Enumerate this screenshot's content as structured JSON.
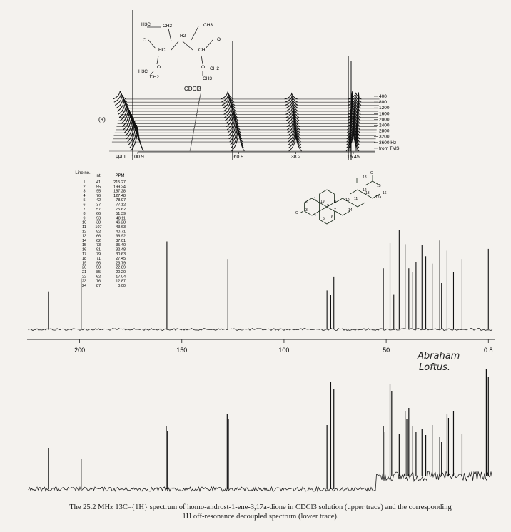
{
  "panel_a": {
    "label": "(a)",
    "solvent_label": "CDCl3",
    "axis_unit": "ppm",
    "axis_ticks": [
      "100.9",
      "60.9",
      "38.2",
      "15.45"
    ],
    "offsets": [
      "400",
      "800",
      "1200",
      "1600",
      "2000",
      "2400",
      "2800",
      "3200",
      "3600 Hz",
      "from TMS"
    ],
    "molecule_labels": [
      "H3C",
      "CH2",
      "CH3",
      "H2",
      "O",
      "O",
      "HC",
      "CH",
      "O",
      "O",
      "CH2",
      "CH3",
      "H3C",
      "CH2"
    ]
  },
  "table": {
    "headers": [
      "Line no.",
      "Int.",
      "PPM"
    ],
    "rows": [
      [
        "1",
        "41",
        "215.27"
      ],
      [
        "2",
        "55",
        "199.24"
      ],
      [
        "3",
        "95",
        "157.28"
      ],
      [
        "4",
        "76",
        "127.48"
      ],
      [
        "5",
        "42",
        "78.97"
      ],
      [
        "6",
        "37",
        "77.12"
      ],
      [
        "7",
        "57",
        "75.62"
      ],
      [
        "8",
        "66",
        "51.39"
      ],
      [
        "9",
        "93",
        "48.11"
      ],
      [
        "10",
        "38",
        "46.28"
      ],
      [
        "11",
        "107",
        "43.63"
      ],
      [
        "12",
        "92",
        "40.71"
      ],
      [
        "13",
        "66",
        "38.92"
      ],
      [
        "14",
        "62",
        "37.01"
      ],
      [
        "15",
        "73",
        "35.40"
      ],
      [
        "16",
        "91",
        "32.48"
      ],
      [
        "17",
        "79",
        "30.63"
      ],
      [
        "18",
        "71",
        "27.45"
      ],
      [
        "19",
        "96",
        "23.79"
      ],
      [
        "20",
        "50",
        "22.89"
      ],
      [
        "21",
        "85",
        "20.20"
      ],
      [
        "22",
        "62",
        "17.04"
      ],
      [
        "23",
        "76",
        "12.87"
      ],
      [
        "24",
        "87",
        "0.00"
      ]
    ]
  },
  "structure_labels": [
    "18",
    "O",
    "O",
    "19",
    "1",
    "2",
    "3",
    "4",
    "5",
    "6",
    "7",
    "8",
    "9",
    "10",
    "11",
    "12",
    "13",
    "14",
    "15",
    "16",
    "17a"
  ],
  "chart_data": {
    "type": "line",
    "title": "",
    "xlabel": "",
    "ylabel": "",
    "x_ticks": [
      200,
      150,
      100,
      50,
      0
    ],
    "x_tick_labels": [
      "200",
      "150",
      "100",
      "50",
      "0 8"
    ],
    "xlim": [
      225,
      -2
    ],
    "series": [
      {
        "trace": "upper",
        "ppm": [
          215.27,
          199.24,
          157.28,
          127.48,
          78.97,
          77.12,
          75.62,
          51.39,
          48.11,
          46.28,
          43.63,
          40.71,
          38.92,
          37.01,
          35.4,
          32.48,
          30.63,
          27.45,
          23.79,
          22.89,
          20.2,
          17.04,
          12.87,
          0.0
        ],
        "intensity": [
          41,
          55,
          95,
          76,
          42,
          37,
          57,
          66,
          93,
          38,
          107,
          92,
          66,
          62,
          73,
          91,
          79,
          71,
          96,
          50,
          85,
          62,
          76,
          87
        ]
      },
      {
        "trace": "lower",
        "peaks": [
          {
            "ppm": 215.27,
            "h": 58
          },
          {
            "ppm": 199.24,
            "h": 42
          },
          {
            "ppm": 157.6,
            "h": 88
          },
          {
            "ppm": 157.0,
            "h": 82
          },
          {
            "ppm": 127.8,
            "h": 105
          },
          {
            "ppm": 127.2,
            "h": 98
          },
          {
            "ppm": 78.97,
            "h": 90
          },
          {
            "ppm": 77.12,
            "h": 150
          },
          {
            "ppm": 75.62,
            "h": 140
          },
          {
            "ppm": 51.39,
            "h": 70
          },
          {
            "ppm": 50.6,
            "h": 62
          },
          {
            "ppm": 48.11,
            "h": 130
          },
          {
            "ppm": 47.3,
            "h": 120
          },
          {
            "ppm": 43.63,
            "h": 60
          },
          {
            "ppm": 40.71,
            "h": 92
          },
          {
            "ppm": 39.9,
            "h": 80
          },
          {
            "ppm": 38.92,
            "h": 96
          },
          {
            "ppm": 37.01,
            "h": 70
          },
          {
            "ppm": 35.4,
            "h": 62
          },
          {
            "ppm": 32.48,
            "h": 66
          },
          {
            "ppm": 30.63,
            "h": 58
          },
          {
            "ppm": 27.45,
            "h": 72
          },
          {
            "ppm": 23.79,
            "h": 55
          },
          {
            "ppm": 22.89,
            "h": 48
          },
          {
            "ppm": 20.2,
            "h": 88
          },
          {
            "ppm": 19.5,
            "h": 82
          },
          {
            "ppm": 17.04,
            "h": 92
          },
          {
            "ppm": 12.87,
            "h": 60
          },
          {
            "ppm": 1.0,
            "h": 150
          },
          {
            "ppm": 0.0,
            "h": 140
          }
        ]
      }
    ]
  },
  "signature": [
    "Abraham",
    "Loftus."
  ],
  "caption_line1": "The 25.2 MHz 13C–{1H} spectrum of homo-androst-1-ene-3,17a-dione in CDCl3 solution (upper trace) and the corresponding",
  "caption_line2": "1H off-resonance decoupled spectrum (lower trace)."
}
